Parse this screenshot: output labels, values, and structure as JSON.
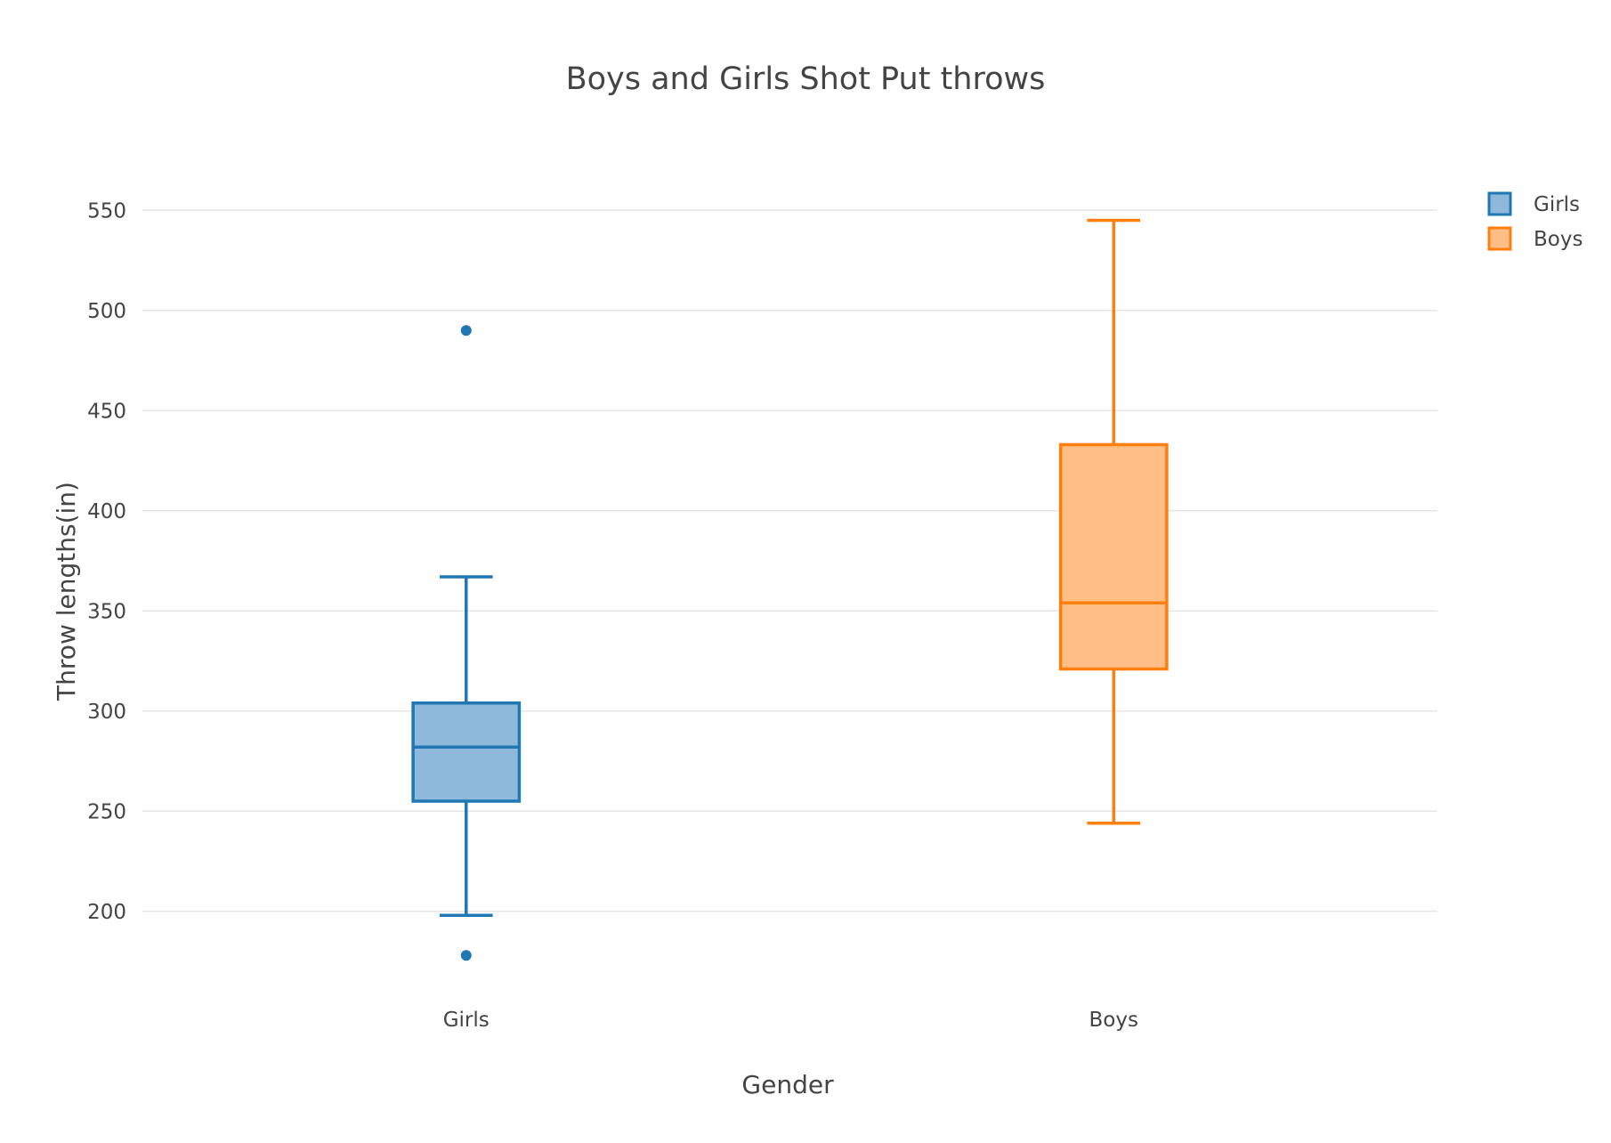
{
  "chart_data": {
    "type": "box",
    "title": "Boys and Girls Shot Put throws",
    "xlabel": "Gender",
    "ylabel": "Throw lengths(in)",
    "categories": [
      "Girls",
      "Boys"
    ],
    "ylim": [
      155,
      575
    ],
    "yticks": [
      200,
      250,
      300,
      350,
      400,
      450,
      500,
      550
    ],
    "grid": true,
    "legend_position": "top-right",
    "series": [
      {
        "name": "Girls",
        "category": "Girls",
        "min": 198,
        "q1": 255,
        "median": 282,
        "q3": 304,
        "max": 367,
        "outliers": [
          490,
          178
        ],
        "line_color": "#1f77b4",
        "fill_color": "#8fb9da"
      },
      {
        "name": "Boys",
        "category": "Boys",
        "min": 244,
        "q1": 321,
        "median": 354,
        "q3": 433,
        "max": 545,
        "outliers": [],
        "line_color": "#ff7f0e",
        "fill_color": "#ffbe85"
      }
    ]
  }
}
